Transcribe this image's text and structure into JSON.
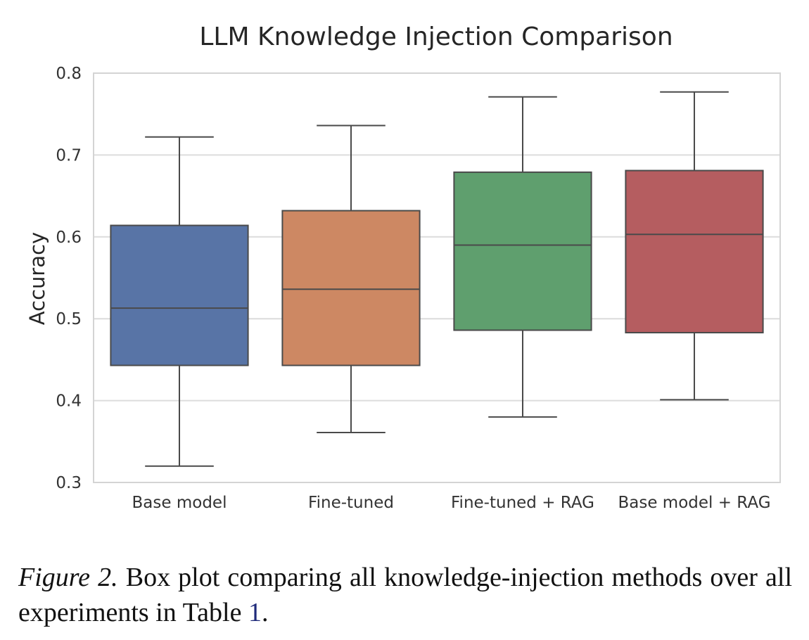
{
  "chart_data": {
    "type": "box",
    "title": "LLM Knowledge Injection Comparison",
    "xlabel": "",
    "ylabel": "Accuracy",
    "ylim": [
      0.3,
      0.8
    ],
    "yticks": [
      0.3,
      0.4,
      0.5,
      0.6,
      0.7,
      0.8
    ],
    "ytick_labels": [
      "0.3",
      "0.4",
      "0.5",
      "0.6",
      "0.7",
      "0.8"
    ],
    "grid": true,
    "categories": [
      "Base model",
      "Fine-tuned",
      "Fine-tuned + RAG",
      "Base model + RAG"
    ],
    "colors": [
      "#5874a6",
      "#cd8863",
      "#5f9f6e",
      "#b55d60"
    ],
    "boxes": [
      {
        "name": "Base model",
        "min": 0.32,
        "q1": 0.443,
        "median": 0.513,
        "q3": 0.614,
        "max": 0.722
      },
      {
        "name": "Fine-tuned",
        "min": 0.361,
        "q1": 0.443,
        "median": 0.536,
        "q3": 0.632,
        "max": 0.736
      },
      {
        "name": "Fine-tuned + RAG",
        "min": 0.38,
        "q1": 0.486,
        "median": 0.59,
        "q3": 0.679,
        "max": 0.771
      },
      {
        "name": "Base model + RAG",
        "min": 0.401,
        "q1": 0.483,
        "median": 0.603,
        "q3": 0.681,
        "max": 0.777
      }
    ]
  },
  "caption": {
    "label": "Figure 2.",
    "text": " Box plot comparing all knowledge-injection methods over all experiments in  Table ",
    "ref": "1",
    "end": "."
  }
}
